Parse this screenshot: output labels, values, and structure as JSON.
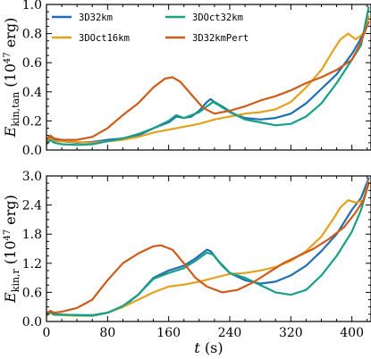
{
  "chart_data": [
    {
      "type": "line",
      "ylabel": "E_kin,tan (10^47 erg)",
      "ylabel_main": "E",
      "ylabel_sub": "kin,tan",
      "ylabel_units_pre": " (10",
      "ylabel_units_exp": "47",
      "ylabel_units_post": " erg)",
      "xlim": [
        0,
        425
      ],
      "ylim": [
        0,
        1.0
      ],
      "yticks": [
        0.0,
        0.2,
        0.4,
        0.6,
        0.8,
        1.0
      ],
      "ytick_labels": [
        "0.0",
        "0.2",
        "0.4",
        "0.6",
        "0.8",
        "1.0"
      ],
      "xticks": [
        0,
        80,
        160,
        240,
        320,
        400
      ],
      "legend": "upper-left, 2 columns",
      "series": [
        {
          "name": "3D32km",
          "color": "#1f6fb4",
          "points": [
            [
              0,
              0.06
            ],
            [
              5,
              0.09
            ],
            [
              10,
              0.07
            ],
            [
              20,
              0.06
            ],
            [
              40,
              0.05
            ],
            [
              60,
              0.055
            ],
            [
              80,
              0.07
            ],
            [
              100,
              0.08
            ],
            [
              120,
              0.1
            ],
            [
              140,
              0.15
            ],
            [
              160,
              0.19
            ],
            [
              170,
              0.23
            ],
            [
              180,
              0.22
            ],
            [
              190,
              0.23
            ],
            [
              200,
              0.27
            ],
            [
              210,
              0.33
            ],
            [
              215,
              0.35
            ],
            [
              220,
              0.33
            ],
            [
              230,
              0.3
            ],
            [
              245,
              0.25
            ],
            [
              260,
              0.22
            ],
            [
              280,
              0.21
            ],
            [
              300,
              0.22
            ],
            [
              320,
              0.25
            ],
            [
              340,
              0.32
            ],
            [
              360,
              0.42
            ],
            [
              380,
              0.52
            ],
            [
              400,
              0.66
            ],
            [
              410,
              0.75
            ],
            [
              420,
              0.86
            ]
          ]
        },
        {
          "name": "3DOct16km",
          "color": "#e5a01e",
          "points": [
            [
              0,
              0.05
            ],
            [
              5,
              0.08
            ],
            [
              10,
              0.06
            ],
            [
              20,
              0.06
            ],
            [
              40,
              0.055
            ],
            [
              60,
              0.05
            ],
            [
              80,
              0.06
            ],
            [
              100,
              0.07
            ],
            [
              120,
              0.09
            ],
            [
              140,
              0.12
            ],
            [
              160,
              0.14
            ],
            [
              180,
              0.16
            ],
            [
              200,
              0.18
            ],
            [
              220,
              0.21
            ],
            [
              240,
              0.23
            ],
            [
              260,
              0.25
            ],
            [
              280,
              0.26
            ],
            [
              300,
              0.28
            ],
            [
              320,
              0.33
            ],
            [
              340,
              0.43
            ],
            [
              360,
              0.55
            ],
            [
              375,
              0.68
            ],
            [
              385,
              0.76
            ],
            [
              395,
              0.8
            ],
            [
              405,
              0.76
            ],
            [
              415,
              0.8
            ],
            [
              422,
              0.92
            ]
          ]
        },
        {
          "name": "3DOct32km",
          "color": "#16a085",
          "points": [
            [
              0,
              0.04
            ],
            [
              5,
              0.07
            ],
            [
              10,
              0.05
            ],
            [
              20,
              0.04
            ],
            [
              40,
              0.035
            ],
            [
              60,
              0.04
            ],
            [
              80,
              0.06
            ],
            [
              100,
              0.08
            ],
            [
              120,
              0.11
            ],
            [
              140,
              0.15
            ],
            [
              160,
              0.2
            ],
            [
              170,
              0.24
            ],
            [
              180,
              0.22
            ],
            [
              190,
              0.24
            ],
            [
              200,
              0.26
            ],
            [
              210,
              0.3
            ],
            [
              218,
              0.33
            ],
            [
              225,
              0.31
            ],
            [
              240,
              0.26
            ],
            [
              260,
              0.21
            ],
            [
              280,
              0.19
            ],
            [
              300,
              0.17
            ],
            [
              320,
              0.18
            ],
            [
              340,
              0.23
            ],
            [
              360,
              0.32
            ],
            [
              380,
              0.46
            ],
            [
              400,
              0.62
            ],
            [
              412,
              0.72
            ],
            [
              422,
              0.98
            ]
          ]
        },
        {
          "name": "3D32kmPert",
          "color": "#cf5a1a",
          "points": [
            [
              0,
              0.07
            ],
            [
              5,
              0.1
            ],
            [
              10,
              0.08
            ],
            [
              20,
              0.07
            ],
            [
              40,
              0.07
            ],
            [
              60,
              0.09
            ],
            [
              80,
              0.15
            ],
            [
              100,
              0.24
            ],
            [
              120,
              0.32
            ],
            [
              140,
              0.43
            ],
            [
              155,
              0.49
            ],
            [
              165,
              0.5
            ],
            [
              175,
              0.47
            ],
            [
              190,
              0.38
            ],
            [
              205,
              0.29
            ],
            [
              220,
              0.25
            ],
            [
              240,
              0.27
            ],
            [
              260,
              0.3
            ],
            [
              280,
              0.34
            ],
            [
              300,
              0.37
            ],
            [
              320,
              0.41
            ],
            [
              340,
              0.46
            ],
            [
              360,
              0.5
            ],
            [
              380,
              0.55
            ],
            [
              400,
              0.62
            ],
            [
              410,
              0.72
            ],
            [
              422,
              0.88
            ]
          ]
        }
      ]
    },
    {
      "type": "line",
      "ylabel": "E_kin,r (10^47 erg)",
      "ylabel_main": "E",
      "ylabel_sub": "kin,r",
      "ylabel_units_pre": " (10",
      "ylabel_units_exp": "47",
      "ylabel_units_post": " erg)",
      "xlabel_main": "t",
      "xlabel_units": " (s)",
      "xlim": [
        0,
        425
      ],
      "ylim": [
        0,
        3.0
      ],
      "yticks": [
        0.0,
        0.6,
        1.2,
        1.8,
        2.4,
        3.0
      ],
      "ytick_labels": [
        "0.0",
        "0.6",
        "1.2",
        "1.8",
        "2.4",
        "3.0"
      ],
      "xticks": [
        0,
        80,
        160,
        240,
        320,
        400
      ],
      "xtick_labels": [
        "0",
        "80",
        "160",
        "240",
        "320",
        "400"
      ],
      "series": [
        {
          "name": "3D32km",
          "color": "#1f6fb4",
          "points": [
            [
              0,
              0.15
            ],
            [
              5,
              0.2
            ],
            [
              10,
              0.15
            ],
            [
              20,
              0.14
            ],
            [
              40,
              0.13
            ],
            [
              60,
              0.13
            ],
            [
              80,
              0.18
            ],
            [
              100,
              0.3
            ],
            [
              120,
              0.55
            ],
            [
              140,
              0.9
            ],
            [
              160,
              1.05
            ],
            [
              180,
              1.15
            ],
            [
              195,
              1.3
            ],
            [
              210,
              1.48
            ],
            [
              215,
              1.45
            ],
            [
              225,
              1.25
            ],
            [
              240,
              1.0
            ],
            [
              260,
              0.85
            ],
            [
              280,
              0.78
            ],
            [
              300,
              0.82
            ],
            [
              320,
              0.95
            ],
            [
              340,
              1.15
            ],
            [
              360,
              1.45
            ],
            [
              380,
              1.8
            ],
            [
              400,
              2.3
            ],
            [
              412,
              2.55
            ],
            [
              422,
              2.95
            ]
          ]
        },
        {
          "name": "3DOct16km",
          "color": "#e5a01e",
          "points": [
            [
              0,
              0.12
            ],
            [
              5,
              0.18
            ],
            [
              10,
              0.14
            ],
            [
              20,
              0.13
            ],
            [
              40,
              0.12
            ],
            [
              60,
              0.12
            ],
            [
              80,
              0.18
            ],
            [
              100,
              0.3
            ],
            [
              120,
              0.45
            ],
            [
              140,
              0.6
            ],
            [
              160,
              0.72
            ],
            [
              180,
              0.76
            ],
            [
              200,
              0.82
            ],
            [
              220,
              0.9
            ],
            [
              240,
              0.98
            ],
            [
              260,
              1.0
            ],
            [
              280,
              1.05
            ],
            [
              300,
              1.12
            ],
            [
              320,
              1.25
            ],
            [
              340,
              1.45
            ],
            [
              360,
              1.75
            ],
            [
              375,
              2.1
            ],
            [
              385,
              2.35
            ],
            [
              395,
              2.5
            ],
            [
              405,
              2.45
            ],
            [
              415,
              2.5
            ],
            [
              422,
              2.9
            ]
          ]
        },
        {
          "name": "3DOct32km",
          "color": "#16a085",
          "points": [
            [
              0,
              0.15
            ],
            [
              5,
              0.19
            ],
            [
              10,
              0.14
            ],
            [
              20,
              0.14
            ],
            [
              40,
              0.13
            ],
            [
              60,
              0.12
            ],
            [
              80,
              0.18
            ],
            [
              100,
              0.32
            ],
            [
              120,
              0.55
            ],
            [
              140,
              0.88
            ],
            [
              160,
              1.0
            ],
            [
              180,
              1.1
            ],
            [
              195,
              1.25
            ],
            [
              210,
              1.42
            ],
            [
              218,
              1.38
            ],
            [
              230,
              1.15
            ],
            [
              240,
              1.0
            ],
            [
              260,
              0.9
            ],
            [
              280,
              0.75
            ],
            [
              300,
              0.6
            ],
            [
              320,
              0.55
            ],
            [
              340,
              0.65
            ],
            [
              360,
              0.95
            ],
            [
              380,
              1.35
            ],
            [
              400,
              1.85
            ],
            [
              412,
              2.3
            ],
            [
              422,
              2.85
            ]
          ]
        },
        {
          "name": "3D32kmPert",
          "color": "#cf5a1a",
          "points": [
            [
              0,
              0.17
            ],
            [
              5,
              0.22
            ],
            [
              10,
              0.18
            ],
            [
              20,
              0.2
            ],
            [
              40,
              0.28
            ],
            [
              60,
              0.45
            ],
            [
              80,
              0.85
            ],
            [
              100,
              1.2
            ],
            [
              120,
              1.4
            ],
            [
              140,
              1.55
            ],
            [
              150,
              1.57
            ],
            [
              165,
              1.48
            ],
            [
              180,
              1.2
            ],
            [
              195,
              0.9
            ],
            [
              210,
              0.72
            ],
            [
              230,
              0.6
            ],
            [
              250,
              0.65
            ],
            [
              270,
              0.8
            ],
            [
              290,
              1.0
            ],
            [
              310,
              1.2
            ],
            [
              330,
              1.35
            ],
            [
              350,
              1.5
            ],
            [
              370,
              1.7
            ],
            [
              390,
              1.95
            ],
            [
              405,
              2.25
            ],
            [
              415,
              2.5
            ],
            [
              422,
              2.85
            ]
          ]
        }
      ]
    }
  ]
}
